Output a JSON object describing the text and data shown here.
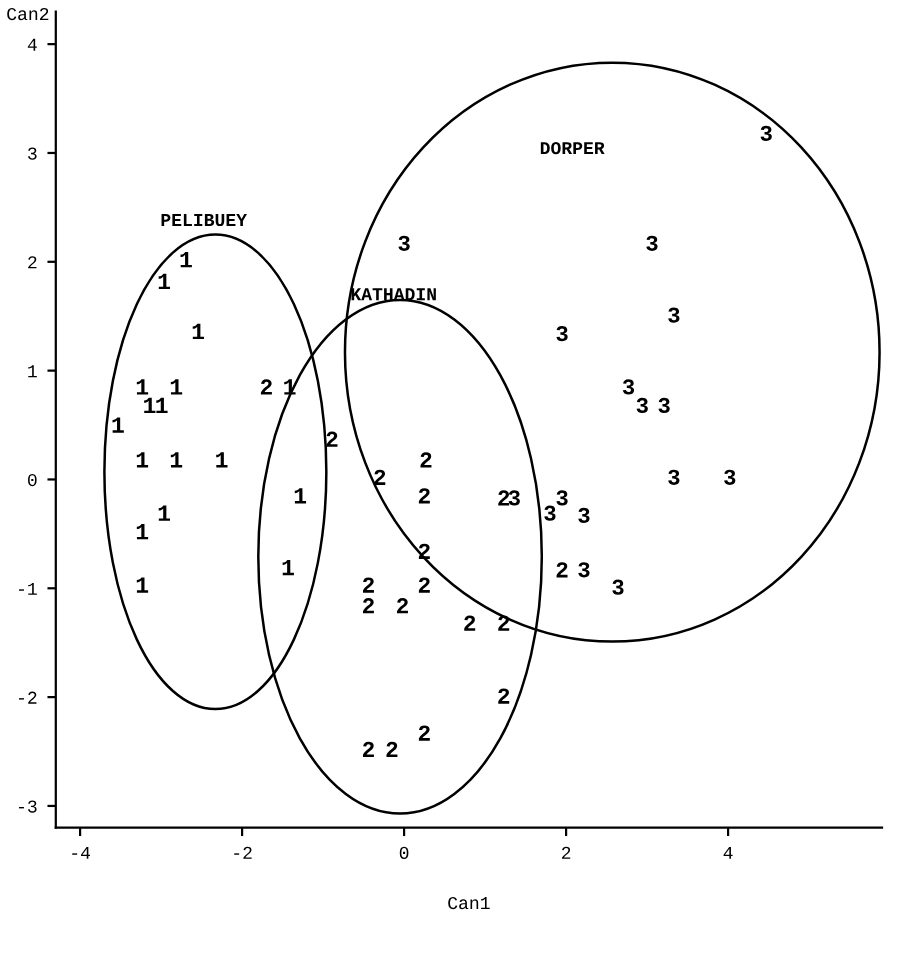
{
  "chart_data": {
    "type": "scatter",
    "xlabel": "Can1",
    "ylabel": "Can2",
    "xlim": [
      -4.3,
      5.9
    ],
    "ylim": [
      -3.2,
      4.3
    ],
    "xticks": [
      -4,
      -2,
      0,
      2,
      4
    ],
    "yticks": [
      -3,
      -2,
      -1,
      0,
      1,
      2,
      3,
      4
    ],
    "annotations": [
      "PELIBUEY",
      "KATHADIN",
      "DORPER"
    ],
    "series": [
      {
        "name": "1",
        "color": "#000000",
        "x": [
          -2.69,
          -2.96,
          -2.54,
          -3.23,
          -2.81,
          -3.14,
          -2.99,
          -3.53,
          -3.23,
          -2.81,
          -2.25,
          -1.28,
          -2.96,
          -3.23,
          -1.43,
          -3.23,
          -1.41
        ],
        "values": [
          2.02,
          1.82,
          1.36,
          0.85,
          0.85,
          0.68,
          0.68,
          0.5,
          0.18,
          0.18,
          0.18,
          -0.15,
          -0.31,
          -0.48,
          -0.81,
          -0.97,
          0.85
        ]
      },
      {
        "name": "2",
        "color": "#000000",
        "x": [
          -1.7,
          -0.89,
          -0.3,
          0.27,
          0.25,
          0.25,
          -0.44,
          0.25,
          -0.44,
          -0.02,
          0.25,
          -0.44,
          -0.15,
          1.23,
          1.95,
          0.81,
          1.23,
          1.23
        ],
        "values": [
          0.85,
          0.37,
          0.02,
          0.18,
          -0.15,
          -0.66,
          -0.97,
          -0.97,
          -1.16,
          -1.16,
          -2.33,
          -2.48,
          -2.48,
          -0.17,
          -0.83,
          -1.32,
          -1.32,
          -1.99
        ]
      },
      {
        "name": "3",
        "color": "#000000",
        "x": [
          1.36,
          1.95,
          1.8,
          2.22,
          2.22,
          2.64,
          3.33,
          4.02,
          4.47,
          3.06,
          3.33,
          1.95,
          2.77,
          2.94,
          3.21,
          0.0
        ],
        "values": [
          -0.17,
          -0.17,
          -0.31,
          -0.33,
          -0.83,
          -0.99,
          0.02,
          0.02,
          3.18,
          2.17,
          1.51,
          1.34,
          0.85,
          0.68,
          0.68,
          2.17
        ]
      }
    ]
  }
}
